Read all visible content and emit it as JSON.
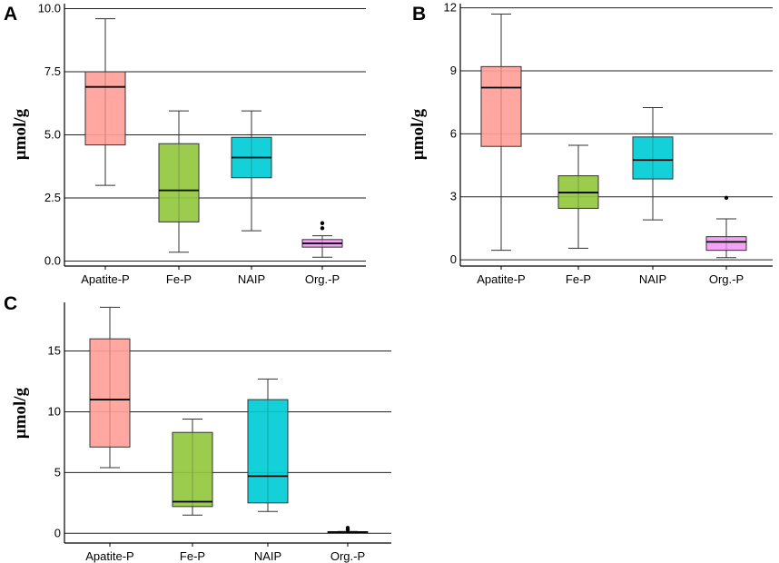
{
  "chart_data": [
    {
      "type": "boxplot",
      "panel": "A",
      "ylabel": "μmol/g",
      "ylim": [
        -0.2,
        10.2
      ],
      "yticks": [
        0.0,
        2.5,
        5.0,
        7.5,
        10.0
      ],
      "ytick_labels": [
        "0.0",
        "2.5",
        "5.0",
        "7.5",
        "10.0"
      ],
      "grid": true,
      "categories": [
        "Apatite-P",
        "Fe-P",
        "NAIP",
        "Org.-P"
      ],
      "boxes": [
        {
          "category": "Apatite-P",
          "whisker_low": 3.0,
          "q1": 4.6,
          "median": 6.9,
          "q3": 7.5,
          "whisker_high": 9.6,
          "outliers": [],
          "color": "#ff9f98"
        },
        {
          "category": "Fe-P",
          "whisker_low": 0.35,
          "q1": 1.55,
          "median": 2.8,
          "q3": 4.65,
          "whisker_high": 5.95,
          "outliers": [],
          "color": "#92c83e"
        },
        {
          "category": "NAIP",
          "whisker_low": 1.2,
          "q1": 3.3,
          "median": 4.1,
          "q3": 4.9,
          "whisker_high": 5.95,
          "outliers": [],
          "color": "#00cdd6"
        },
        {
          "category": "Org.-P",
          "whisker_low": 0.15,
          "q1": 0.55,
          "median": 0.7,
          "q3": 0.85,
          "whisker_high": 1.0,
          "outliers": [
            1.3,
            1.5
          ],
          "color": "#f29af5"
        }
      ]
    },
    {
      "type": "boxplot",
      "panel": "B",
      "ylabel": "μmol/g",
      "ylim": [
        -0.3,
        12.2
      ],
      "yticks": [
        0,
        3,
        6,
        9,
        12
      ],
      "ytick_labels": [
        "0",
        "3",
        "6",
        "9",
        "12"
      ],
      "grid": true,
      "categories": [
        "Apatite-P",
        "Fe-P",
        "NAIP",
        "Org.-P"
      ],
      "boxes": [
        {
          "category": "Apatite-P",
          "whisker_low": 0.45,
          "q1": 5.4,
          "median": 8.2,
          "q3": 9.2,
          "whisker_high": 11.7,
          "outliers": [],
          "color": "#ff9f98"
        },
        {
          "category": "Fe-P",
          "whisker_low": 0.55,
          "q1": 2.45,
          "median": 3.2,
          "q3": 4.0,
          "whisker_high": 5.45,
          "outliers": [],
          "color": "#92c83e"
        },
        {
          "category": "NAIP",
          "whisker_low": 1.9,
          "q1": 3.85,
          "median": 4.75,
          "q3": 5.85,
          "whisker_high": 7.25,
          "outliers": [],
          "color": "#00cdd6"
        },
        {
          "category": "Org.-P",
          "whisker_low": 0.1,
          "q1": 0.45,
          "median": 0.85,
          "q3": 1.1,
          "whisker_high": 1.95,
          "outliers": [
            2.95
          ],
          "color": "#f29af5"
        }
      ]
    },
    {
      "type": "boxplot",
      "panel": "C",
      "ylabel": "μmol/g",
      "ylim": [
        -0.8,
        19.0
      ],
      "yticks": [
        0,
        5,
        10,
        15
      ],
      "ytick_labels": [
        "0",
        "5",
        "10",
        "15"
      ],
      "grid": true,
      "categories": [
        "Apatite-P",
        "Fe-P",
        "NAIP",
        "Org.-P"
      ],
      "boxes": [
        {
          "category": "Apatite-P",
          "whisker_low": 5.4,
          "q1": 7.1,
          "median": 11.0,
          "q3": 16.0,
          "whisker_high": 18.6,
          "outliers": [],
          "color": "#ff9f98"
        },
        {
          "category": "Fe-P",
          "whisker_low": 1.5,
          "q1": 2.2,
          "median": 2.6,
          "q3": 8.3,
          "whisker_high": 9.4,
          "outliers": [],
          "color": "#92c83e"
        },
        {
          "category": "NAIP",
          "whisker_low": 1.8,
          "q1": 2.5,
          "median": 4.7,
          "q3": 11.0,
          "whisker_high": 12.7,
          "outliers": [],
          "color": "#00cdd6"
        },
        {
          "category": "Org.-P",
          "whisker_low": 0.05,
          "q1": 0.08,
          "median": 0.1,
          "q3": 0.12,
          "whisker_high": 0.15,
          "outliers": [
            0.3,
            0.45
          ],
          "color": "#f29af5"
        }
      ]
    }
  ]
}
